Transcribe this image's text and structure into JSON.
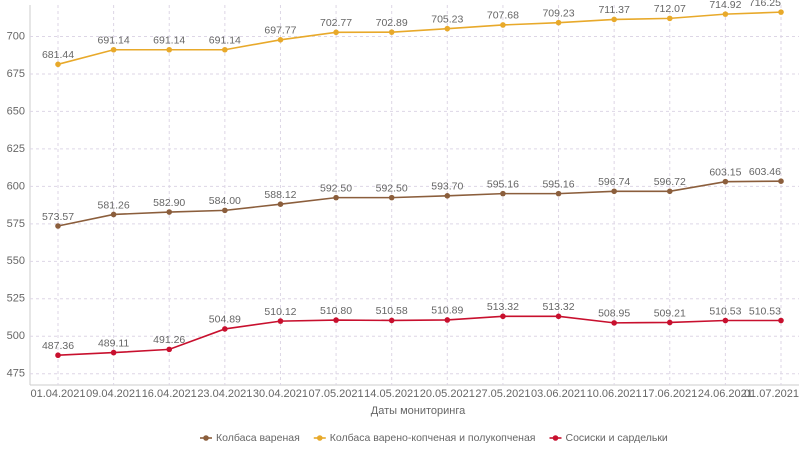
{
  "chart_data": {
    "type": "line",
    "x_label": "Даты мониторинга",
    "categories": [
      "01.04.2021",
      "09.04.2021",
      "16.04.2021",
      "23.04.2021",
      "30.04.2021",
      "07.05.2021",
      "14.05.2021",
      "20.05.2021",
      "27.05.2021",
      "03.06.2021",
      "10.06.2021",
      "17.06.2021",
      "24.06.2021",
      "01.07.2021"
    ],
    "series": [
      {
        "name": "Колбаса вареная",
        "color": "#8b5e3c",
        "values": [
          573.57,
          581.26,
          582.9,
          584,
          588.12,
          592.5,
          592.5,
          593.7,
          595.16,
          595.16,
          596.74,
          596.72,
          603.15,
          603.46
        ],
        "value_labels": [
          "573.57",
          "581.26",
          "582.90",
          "584.00",
          "588.12",
          "592.50",
          "592.50",
          "593.70",
          "595.16",
          "595.16",
          "596.74",
          "596.72",
          "603.15",
          "603.46"
        ]
      },
      {
        "name": "Колбаса варено-копченая и полукопченая",
        "color": "#e8a92a",
        "values": [
          681.44,
          691.14,
          691.14,
          691.14,
          697.77,
          702.77,
          702.89,
          705.23,
          707.68,
          709.23,
          711.37,
          712.07,
          714.92,
          716.25
        ],
        "value_labels": [
          "681.44",
          "691.14",
          "691.14",
          "691.14",
          "697.77",
          "702.77",
          "702.89",
          "705.23",
          "707.68",
          "709.23",
          "711.37",
          "712.07",
          "714.92",
          "716.25"
        ]
      },
      {
        "name": "Сосиски и сардельки",
        "color": "#c8102e",
        "values": [
          487.36,
          489.11,
          491.26,
          504.89,
          510.12,
          510.8,
          510.58,
          510.89,
          513.32,
          513.32,
          508.95,
          509.21,
          510.53,
          510.53
        ],
        "value_labels": [
          "487.36",
          "489.11",
          "491.26",
          "504.89",
          "510.12",
          "510.80",
          "510.58",
          "510.89",
          "513.32",
          "513.32",
          "508.95",
          "509.21",
          "510.53",
          "510.53"
        ]
      }
    ],
    "ylim": [
      467.5,
      721
    ],
    "yticks": [
      475,
      500,
      525,
      550,
      575,
      600,
      625,
      650,
      675,
      700
    ],
    "grid": true
  }
}
